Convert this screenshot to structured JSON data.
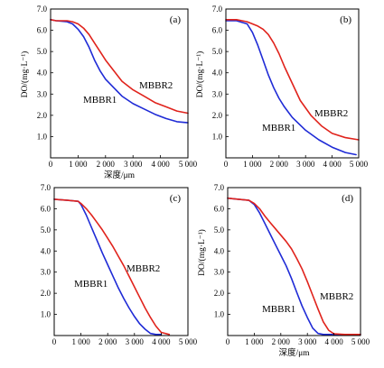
{
  "colors": {
    "MBBR1": "#1f2bd6",
    "MBBR2": "#e0231c"
  },
  "chart_data": [
    {
      "panel": "(a)",
      "type": "line",
      "xlabel": "深度/μm",
      "ylabel": "DO/(mg·L⁻¹)",
      "xlim": [
        0,
        5000
      ],
      "ylim": [
        0,
        7.0
      ],
      "xticks": [
        0,
        1000,
        2000,
        3000,
        4000,
        5000
      ],
      "xtick_labels": [
        "0",
        "1 000",
        "2 000",
        "3 000",
        "4 000",
        "5 000"
      ],
      "yticks": [
        1.0,
        2.0,
        3.0,
        4.0,
        5.0,
        6.0,
        7.0
      ],
      "ytick_labels": [
        "1.0",
        "2.0",
        "3.0",
        "4.0",
        "5.0",
        "6.0",
        "7.0"
      ],
      "series": [
        {
          "name": "MBBR1",
          "x": [
            0,
            200,
            600,
            800,
            1000,
            1200,
            1400,
            1600,
            1800,
            2000,
            2300,
            2600,
            3000,
            3400,
            3800,
            4200,
            4600,
            5000
          ],
          "y": [
            6.5,
            6.45,
            6.4,
            6.3,
            6.05,
            5.7,
            5.2,
            4.6,
            4.1,
            3.7,
            3.3,
            2.9,
            2.55,
            2.3,
            2.05,
            1.85,
            1.7,
            1.65
          ]
        },
        {
          "name": "MBBR2",
          "x": [
            0,
            200,
            600,
            800,
            1000,
            1200,
            1400,
            1600,
            1800,
            2000,
            2300,
            2600,
            3000,
            3400,
            3800,
            4200,
            4600,
            5000
          ],
          "y": [
            6.5,
            6.45,
            6.45,
            6.4,
            6.3,
            6.1,
            5.8,
            5.4,
            5.0,
            4.6,
            4.1,
            3.6,
            3.2,
            2.9,
            2.6,
            2.4,
            2.2,
            2.1
          ]
        }
      ]
    },
    {
      "panel": "(b)",
      "type": "line",
      "xlabel": "",
      "ylabel": "DO/(mg·L⁻¹)",
      "xlim": [
        0,
        5000
      ],
      "ylim": [
        0,
        7.0
      ],
      "xticks": [
        0,
        1000,
        2000,
        3000,
        4000,
        5000
      ],
      "xtick_labels": [
        "0",
        "1 000",
        "2 000",
        "3 000",
        "4 000",
        "5 000"
      ],
      "yticks": [
        1.0,
        2.0,
        3.0,
        4.0,
        5.0,
        6.0,
        7.0
      ],
      "ytick_labels": [
        "1.0",
        "2.0",
        "3.0",
        "4.0",
        "5.0",
        "6.0",
        "7.0"
      ],
      "series": [
        {
          "name": "MBBR1",
          "x": [
            0,
            400,
            800,
            1000,
            1200,
            1400,
            1600,
            1800,
            2000,
            2200,
            2500,
            3000,
            3500,
            4000,
            4500,
            4900
          ],
          "y": [
            6.45,
            6.45,
            6.3,
            5.9,
            5.3,
            4.6,
            3.9,
            3.3,
            2.8,
            2.4,
            1.9,
            1.3,
            0.85,
            0.5,
            0.25,
            0.15
          ]
        },
        {
          "name": "MBBR2",
          "x": [
            0,
            400,
            800,
            1000,
            1200,
            1400,
            1600,
            1800,
            2000,
            2200,
            2500,
            2800,
            3200,
            3600,
            4000,
            4500,
            5000
          ],
          "y": [
            6.5,
            6.5,
            6.4,
            6.3,
            6.2,
            6.05,
            5.8,
            5.4,
            4.9,
            4.3,
            3.5,
            2.7,
            2.0,
            1.5,
            1.15,
            0.95,
            0.85
          ]
        }
      ]
    },
    {
      "panel": "(c)",
      "type": "line",
      "xlabel": "",
      "ylabel": "",
      "xlim": [
        0,
        5000
      ],
      "ylim": [
        0,
        7.0
      ],
      "xticks": [
        0,
        1000,
        2000,
        3000,
        4000,
        5000
      ],
      "xtick_labels": [
        "0",
        "1 000",
        "2 000",
        "3 000",
        "4 000",
        "5 000"
      ],
      "yticks": [
        1.0,
        2.0,
        3.0,
        4.0,
        5.0,
        6.0,
        7.0
      ],
      "ytick_labels": [
        "1.0",
        "2.0",
        "3.0",
        "4.0",
        "5.0",
        "6.0",
        "7.0"
      ],
      "series": [
        {
          "name": "MBBR1",
          "x": [
            0,
            500,
            900,
            1000,
            1200,
            1400,
            1600,
            1800,
            2000,
            2200,
            2400,
            2600,
            2800,
            3000,
            3200,
            3400,
            3600,
            3800,
            4000
          ],
          "y": [
            6.45,
            6.4,
            6.35,
            6.2,
            5.7,
            5.1,
            4.5,
            3.9,
            3.35,
            2.8,
            2.25,
            1.75,
            1.3,
            0.9,
            0.55,
            0.3,
            0.1,
            0.05,
            0.05
          ]
        },
        {
          "name": "MBBR2",
          "x": [
            0,
            500,
            900,
            1000,
            1200,
            1400,
            1600,
            1800,
            2000,
            2200,
            2400,
            2600,
            2800,
            3000,
            3200,
            3400,
            3600,
            3800,
            4000,
            4300
          ],
          "y": [
            6.45,
            6.4,
            6.35,
            6.25,
            6.0,
            5.7,
            5.35,
            5.0,
            4.6,
            4.2,
            3.75,
            3.3,
            2.8,
            2.3,
            1.8,
            1.3,
            0.85,
            0.45,
            0.15,
            0.05
          ]
        }
      ]
    },
    {
      "panel": "(d)",
      "type": "line",
      "xlabel": "深度/μm",
      "ylabel": "DO/(mg·L⁻¹)",
      "xlim": [
        0,
        5000
      ],
      "ylim": [
        0,
        7.0
      ],
      "xticks": [
        0,
        1000,
        2000,
        3000,
        4000,
        5000
      ],
      "xtick_labels": [
        "0",
        "1 000",
        "2 000",
        "3 000",
        "4 000",
        "5 000"
      ],
      "yticks": [
        1.0,
        2.0,
        3.0,
        4.0,
        5.0,
        6.0,
        7.0
      ],
      "ytick_labels": [
        "1.0",
        "2.0",
        "3.0",
        "4.0",
        "5.0",
        "6.0",
        "7.0"
      ],
      "series": [
        {
          "name": "MBBR1",
          "x": [
            0,
            400,
            800,
            1000,
            1200,
            1400,
            1600,
            1800,
            2000,
            2200,
            2400,
            2600,
            2800,
            3000,
            3200,
            3400,
            3600,
            4000,
            5000
          ],
          "y": [
            6.5,
            6.45,
            6.4,
            6.2,
            5.8,
            5.3,
            4.8,
            4.3,
            3.8,
            3.3,
            2.7,
            2.05,
            1.4,
            0.85,
            0.35,
            0.1,
            0.05,
            0.05,
            0.05
          ]
        },
        {
          "name": "MBBR2",
          "x": [
            0,
            400,
            800,
            1000,
            1200,
            1400,
            1600,
            1800,
            2000,
            2200,
            2400,
            2600,
            2800,
            3000,
            3200,
            3400,
            3600,
            3800,
            4000,
            4400,
            5000
          ],
          "y": [
            6.5,
            6.45,
            6.4,
            6.25,
            6.0,
            5.65,
            5.35,
            5.05,
            4.75,
            4.45,
            4.1,
            3.65,
            3.15,
            2.55,
            1.9,
            1.25,
            0.65,
            0.25,
            0.08,
            0.05,
            0.05
          ]
        }
      ]
    }
  ]
}
